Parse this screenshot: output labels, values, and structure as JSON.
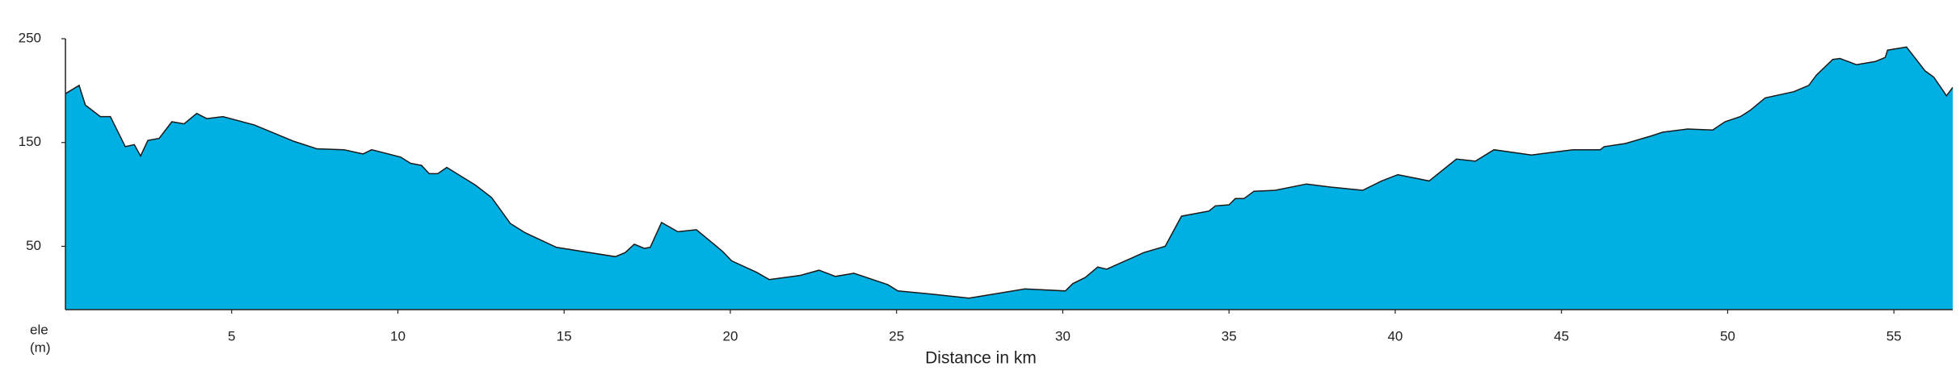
{
  "chart_data": {
    "type": "area",
    "xlabel": "Distance in km",
    "ylabel": "ele",
    "yunit": "(m)",
    "color": "#00b0e2",
    "x": [
      0,
      0.41,
      0.6,
      1.05,
      1.35,
      1.8,
      2.07,
      2.26,
      2.48,
      2.82,
      3.2,
      3.57,
      3.95,
      4.25,
      4.74,
      5.68,
      6.88,
      7.56,
      8.38,
      8.95,
      9.21,
      10.08,
      10.38,
      10.71,
      10.94,
      11.2,
      11.47,
      12.33,
      12.82,
      13.38,
      13.83,
      14.77,
      16.54,
      16.84,
      17.11,
      17.41,
      17.59,
      17.93,
      18.42,
      18.98,
      19.77,
      20.04,
      20.79,
      21.17,
      22.11,
      22.67,
      23.16,
      23.72,
      24.74,
      25.04,
      26.05,
      27.18,
      28.12,
      28.87,
      30.08,
      30.3,
      30.68,
      31.05,
      31.32,
      32.44,
      33.08,
      33.57,
      34.4,
      34.59,
      35.0,
      35.19,
      35.45,
      35.75,
      36.39,
      37.33,
      38.08,
      39.02,
      39.59,
      40.08,
      41.02,
      41.84,
      42.41,
      42.97,
      44.1,
      45.34,
      46.17,
      46.28,
      46.92,
      47.67,
      48.05,
      48.8,
      49.55,
      49.92,
      50.38,
      50.68,
      51.13,
      51.99,
      52.44,
      52.67,
      53.16,
      53.38,
      53.87,
      54.44,
      54.74,
      54.81,
      55.38,
      55.94,
      56.2,
      56.5,
      56.58,
      56.77
    ],
    "values": [
      197,
      205,
      186,
      175,
      175,
      146,
      148,
      137,
      152,
      154,
      170,
      168,
      178,
      173,
      175,
      167,
      151,
      144,
      143,
      139,
      143,
      136,
      130,
      128,
      120,
      120,
      126,
      109,
      97,
      72,
      63,
      49,
      40,
      44,
      52,
      48,
      49,
      73,
      64,
      66,
      45,
      36,
      25,
      18,
      22,
      27,
      21,
      24,
      13,
      7,
      4,
      0,
      5,
      9,
      7,
      14,
      20,
      30,
      28,
      44,
      50,
      79,
      84,
      89,
      90,
      96,
      96,
      103,
      104,
      110,
      107,
      104,
      113,
      119,
      113,
      134,
      132,
      143,
      138,
      143,
      143,
      146,
      149,
      156,
      160,
      163,
      162,
      170,
      175,
      181,
      193,
      199,
      205,
      215,
      230,
      231,
      225,
      228,
      232,
      239,
      242,
      219,
      213,
      199,
      195,
      203
    ],
    "xlim": [
      0,
      56.77
    ],
    "ylim": [
      -11,
      250
    ],
    "xticks": [
      5,
      10,
      15,
      20,
      25,
      30,
      35,
      40,
      45,
      50,
      55
    ],
    "yticks": [
      50,
      150,
      250
    ]
  }
}
